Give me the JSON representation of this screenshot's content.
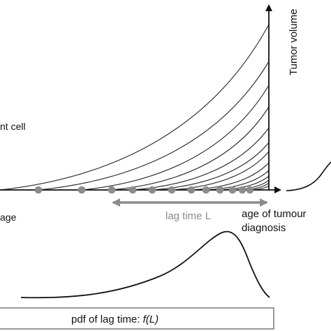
{
  "labels": {
    "y_axis": "Tumor volume",
    "cell_fragment": "nt cell",
    "age_fragment": "age",
    "lag_time": "lag time L",
    "diagnosis_line1": "age of tumour",
    "diagnosis_line2": "diagnosis",
    "pdf_prefix": "pdf of lag time: ",
    "pdf_func": "f(L)"
  },
  "colors": {
    "ink": "#333333",
    "dot": "#8c8c8c",
    "arrow": "#8c8c8c",
    "box_border": "#555555"
  }
}
